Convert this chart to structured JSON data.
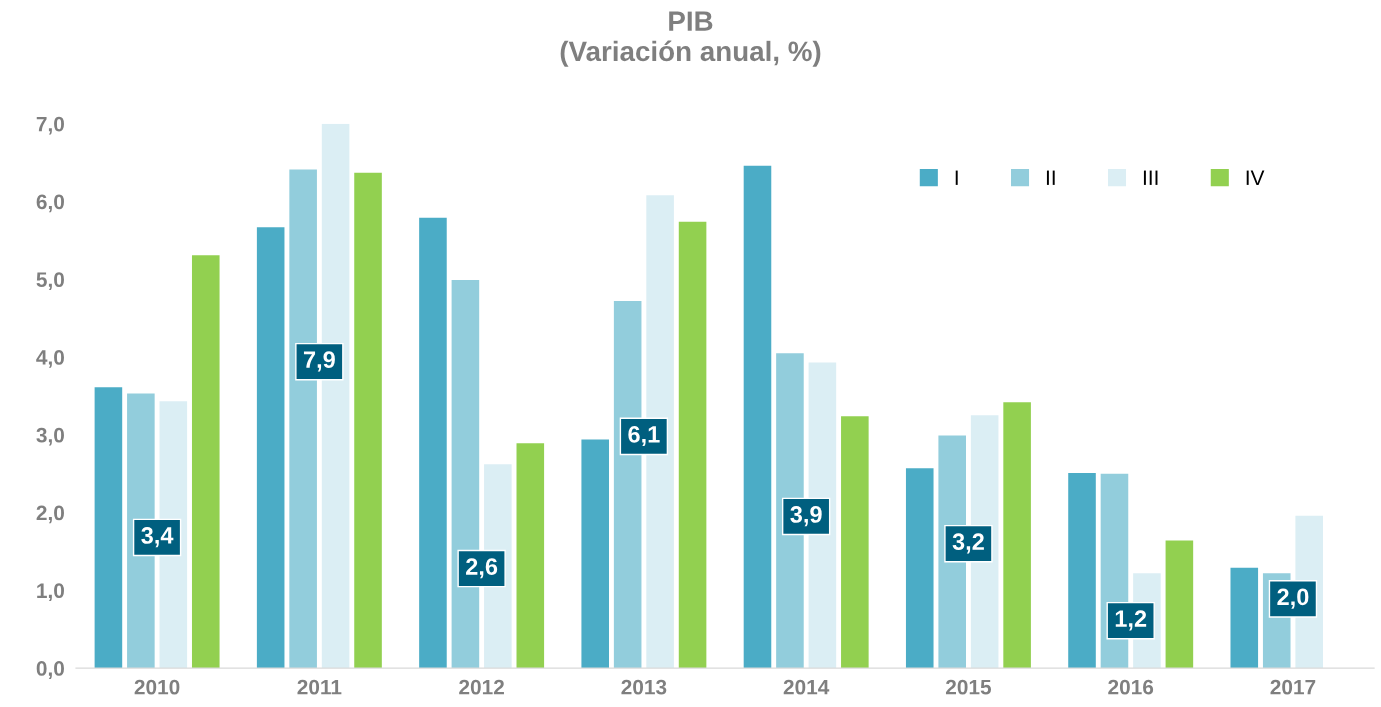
{
  "chart_data": {
    "type": "bar",
    "title": "PIB\n(Variación anual, %)",
    "categories": [
      "2010",
      "2011",
      "2012",
      "2013",
      "2014",
      "2015",
      "2016",
      "2017"
    ],
    "series": [
      {
        "name": "I",
        "color": "#4bacc6",
        "values": [
          3.61,
          5.67,
          5.79,
          2.94,
          6.46,
          2.57,
          2.51,
          1.29
        ]
      },
      {
        "name": "II",
        "color": "#92cddc",
        "values": [
          3.53,
          6.41,
          4.99,
          4.72,
          4.05,
          2.99,
          2.5,
          1.22
        ]
      },
      {
        "name": "III",
        "color": "#dbeef4",
        "values": [
          3.43,
          7.0,
          2.62,
          6.08,
          3.93,
          3.25,
          1.22,
          1.96
        ]
      },
      {
        "name": "IV",
        "color": "#92d050",
        "values": [
          5.31,
          6.37,
          2.89,
          5.74,
          3.24,
          3.42,
          1.64,
          null
        ]
      }
    ],
    "ylim": [
      0,
      7
    ],
    "yticks": [
      {
        "value": 0,
        "label": "0,0"
      },
      {
        "value": 1,
        "label": "1,0"
      },
      {
        "value": 2,
        "label": "2,0"
      },
      {
        "value": 3,
        "label": "3,0"
      },
      {
        "value": 4,
        "label": "4,0"
      },
      {
        "value": 5,
        "label": "5,0"
      },
      {
        "value": 6,
        "label": "6,0"
      },
      {
        "value": 7,
        "label": "7,0"
      }
    ],
    "grid": false,
    "legend": "top right",
    "annotations": [
      {
        "text": "3,4",
        "x": "2010",
        "y": 1.68
      },
      {
        "text": "7,9",
        "x": "2011",
        "y": 3.94
      },
      {
        "text": "2,6",
        "x": "2012",
        "y": 1.28
      },
      {
        "text": "6,1",
        "x": "2013",
        "y": 2.98
      },
      {
        "text": "3,9",
        "x": "2014",
        "y": 1.95
      },
      {
        "text": "3,2",
        "x": "2015",
        "y": 1.6
      },
      {
        "text": "1,2",
        "x": "2016",
        "y": 0.61
      },
      {
        "text": "2,0",
        "x": "2017",
        "y": 0.89
      }
    ]
  }
}
